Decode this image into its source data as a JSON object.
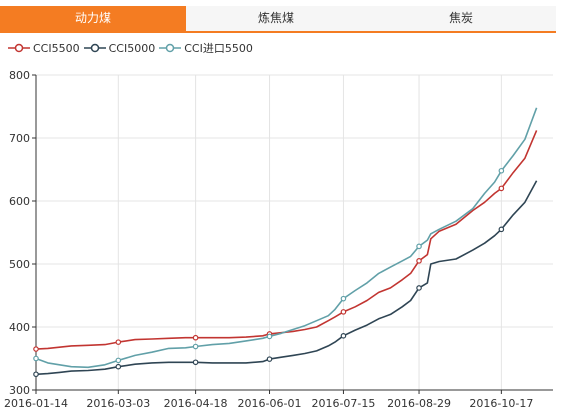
{
  "tabs": [
    {
      "label": "动力煤",
      "active": true
    },
    {
      "label": "炼焦煤",
      "active": false
    },
    {
      "label": "焦炭",
      "active": false
    }
  ],
  "colors": {
    "accent": "#f47c22",
    "cci5500": "#c23531",
    "cci5000": "#2f4554",
    "cci_import": "#61a0a8"
  },
  "chart_data": {
    "type": "line",
    "title": "",
    "xlabel": "",
    "ylabel": "",
    "ylim": [
      300,
      800
    ],
    "y_ticks": [
      300,
      400,
      500,
      600,
      700,
      800
    ],
    "x_ticks": [
      "2016-01-14",
      "2016-03-03",
      "2016-04-18",
      "2016-06-01",
      "2016-07-15",
      "2016-08-29",
      "2016-10-17"
    ],
    "grid": true,
    "legend_position": "top-left",
    "series": [
      {
        "name": "CCI5500",
        "color": "#c23531",
        "points": [
          [
            "2016-01-14",
            365
          ],
          [
            "2016-01-21",
            366
          ],
          [
            "2016-01-28",
            368
          ],
          [
            "2016-02-04",
            370
          ],
          [
            "2016-02-14",
            371
          ],
          [
            "2016-02-24",
            372
          ],
          [
            "2016-03-03",
            376
          ],
          [
            "2016-03-13",
            380
          ],
          [
            "2016-03-23",
            381
          ],
          [
            "2016-04-02",
            382
          ],
          [
            "2016-04-12",
            383
          ],
          [
            "2016-04-18",
            383
          ],
          [
            "2016-04-28",
            383
          ],
          [
            "2016-05-08",
            383
          ],
          [
            "2016-05-18",
            384
          ],
          [
            "2016-05-28",
            386
          ],
          [
            "2016-06-01",
            389
          ],
          [
            "2016-06-08",
            391
          ],
          [
            "2016-06-15",
            393
          ],
          [
            "2016-06-22",
            396
          ],
          [
            "2016-06-29",
            400
          ],
          [
            "2016-07-06",
            410
          ],
          [
            "2016-07-10",
            416
          ],
          [
            "2016-07-15",
            424
          ],
          [
            "2016-07-22",
            432
          ],
          [
            "2016-07-29",
            442
          ],
          [
            "2016-08-05",
            455
          ],
          [
            "2016-08-12",
            462
          ],
          [
            "2016-08-19",
            475
          ],
          [
            "2016-08-24",
            485
          ],
          [
            "2016-08-29",
            505
          ],
          [
            "2016-09-03",
            515
          ],
          [
            "2016-09-05",
            540
          ],
          [
            "2016-09-10",
            552
          ],
          [
            "2016-09-20",
            563
          ],
          [
            "2016-09-30",
            585
          ],
          [
            "2016-10-07",
            598
          ],
          [
            "2016-10-13",
            612
          ],
          [
            "2016-10-17",
            620
          ],
          [
            "2016-10-24",
            645
          ],
          [
            "2016-10-31",
            668
          ],
          [
            "2016-11-07",
            712
          ]
        ]
      },
      {
        "name": "CCI5000",
        "color": "#2f4554",
        "points": [
          [
            "2016-01-14",
            325
          ],
          [
            "2016-01-21",
            326
          ],
          [
            "2016-01-28",
            328
          ],
          [
            "2016-02-04",
            330
          ],
          [
            "2016-02-14",
            331
          ],
          [
            "2016-02-24",
            333
          ],
          [
            "2016-03-03",
            337
          ],
          [
            "2016-03-13",
            341
          ],
          [
            "2016-03-23",
            343
          ],
          [
            "2016-04-02",
            344
          ],
          [
            "2016-04-12",
            344
          ],
          [
            "2016-04-18",
            344
          ],
          [
            "2016-04-28",
            343
          ],
          [
            "2016-05-08",
            343
          ],
          [
            "2016-05-18",
            343
          ],
          [
            "2016-05-28",
            345
          ],
          [
            "2016-06-01",
            349
          ],
          [
            "2016-06-08",
            352
          ],
          [
            "2016-06-15",
            355
          ],
          [
            "2016-06-22",
            358
          ],
          [
            "2016-06-29",
            362
          ],
          [
            "2016-07-06",
            370
          ],
          [
            "2016-07-10",
            376
          ],
          [
            "2016-07-15",
            386
          ],
          [
            "2016-07-22",
            395
          ],
          [
            "2016-07-29",
            403
          ],
          [
            "2016-08-05",
            413
          ],
          [
            "2016-08-12",
            420
          ],
          [
            "2016-08-19",
            432
          ],
          [
            "2016-08-24",
            442
          ],
          [
            "2016-08-29",
            462
          ],
          [
            "2016-09-03",
            470
          ],
          [
            "2016-09-05",
            500
          ],
          [
            "2016-09-10",
            504
          ],
          [
            "2016-09-20",
            508
          ],
          [
            "2016-09-30",
            522
          ],
          [
            "2016-10-07",
            533
          ],
          [
            "2016-10-13",
            545
          ],
          [
            "2016-10-17",
            555
          ],
          [
            "2016-10-24",
            578
          ],
          [
            "2016-10-31",
            598
          ],
          [
            "2016-11-07",
            632
          ]
        ]
      },
      {
        "name": "CCI进口5500",
        "color": "#61a0a8",
        "points": [
          [
            "2016-01-14",
            350
          ],
          [
            "2016-01-21",
            343
          ],
          [
            "2016-01-28",
            340
          ],
          [
            "2016-02-04",
            337
          ],
          [
            "2016-02-14",
            336
          ],
          [
            "2016-02-24",
            340
          ],
          [
            "2016-03-03",
            347
          ],
          [
            "2016-03-13",
            355
          ],
          [
            "2016-03-23",
            360
          ],
          [
            "2016-04-02",
            366
          ],
          [
            "2016-04-12",
            367
          ],
          [
            "2016-04-18",
            369
          ],
          [
            "2016-04-28",
            372
          ],
          [
            "2016-05-08",
            374
          ],
          [
            "2016-05-18",
            378
          ],
          [
            "2016-05-28",
            382
          ],
          [
            "2016-06-01",
            385
          ],
          [
            "2016-06-08",
            390
          ],
          [
            "2016-06-15",
            396
          ],
          [
            "2016-06-22",
            402
          ],
          [
            "2016-06-29",
            410
          ],
          [
            "2016-07-06",
            418
          ],
          [
            "2016-07-10",
            428
          ],
          [
            "2016-07-15",
            445
          ],
          [
            "2016-07-22",
            458
          ],
          [
            "2016-07-29",
            470
          ],
          [
            "2016-08-05",
            485
          ],
          [
            "2016-08-12",
            495
          ],
          [
            "2016-08-19",
            505
          ],
          [
            "2016-08-24",
            512
          ],
          [
            "2016-08-29",
            528
          ],
          [
            "2016-09-03",
            538
          ],
          [
            "2016-09-05",
            548
          ],
          [
            "2016-09-10",
            555
          ],
          [
            "2016-09-20",
            568
          ],
          [
            "2016-09-30",
            588
          ],
          [
            "2016-10-07",
            612
          ],
          [
            "2016-10-13",
            630
          ],
          [
            "2016-10-17",
            648
          ],
          [
            "2016-10-24",
            672
          ],
          [
            "2016-10-31",
            698
          ],
          [
            "2016-11-07",
            748
          ]
        ]
      }
    ]
  }
}
